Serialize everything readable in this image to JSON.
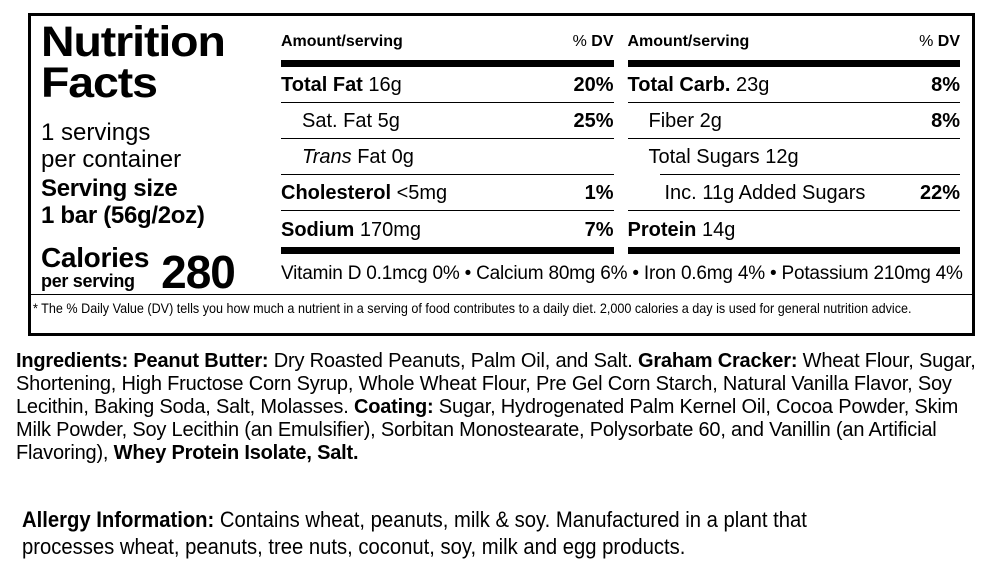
{
  "label": {
    "title_line1": "Nutrition",
    "title_line2": "Facts",
    "servings_line1": "1 servings",
    "servings_line2": "per container",
    "serving_size_label": "Serving size",
    "serving_size_value": "1 bar (56g/2oz)",
    "calories_label": "Calories",
    "calories_sub": "per serving",
    "calories_value": "280",
    "columns": [
      {
        "header_amount": "Amount/serving",
        "header_pct": "%",
        "header_dv": "DV",
        "rows": [
          {
            "name": "Total Fat",
            "amount": "16g",
            "dv": "20%"
          },
          {
            "name": "Sat. Fat",
            "amount": "5g",
            "dv": "25%"
          },
          {
            "name": "Trans",
            "amount": "Fat 0g",
            "dv": ""
          },
          {
            "name": "Cholesterol",
            "amount": "<5mg",
            "dv": "1%"
          },
          {
            "name": "Sodium",
            "amount": "170mg",
            "dv": "7%"
          }
        ]
      },
      {
        "header_amount": "Amount/serving",
        "header_pct": "%",
        "header_dv": "DV",
        "rows": [
          {
            "name": "Total Carb.",
            "amount": "23g",
            "dv": "8%"
          },
          {
            "name": "Fiber",
            "amount": "2g",
            "dv": "8%"
          },
          {
            "name": "Total Sugars",
            "amount": "12g",
            "dv": ""
          },
          {
            "name": "Inc.",
            "amount": "11g Added Sugars",
            "dv": "22%"
          },
          {
            "name": "Protein",
            "amount": "14g",
            "dv": ""
          }
        ]
      }
    ],
    "micronutrients": "Vitamin D 0.1mcg 0% • Calcium 80mg 6% • Iron 0.6mg 4% • Potassium 210mg 4%",
    "footnote": "* The % Daily Value (DV) tells you how much a nutrient in a serving of food contributes to a daily diet. 2,000 calories a day is used for general nutrition advice."
  },
  "ingredients": {
    "segments": [
      {
        "text": "Ingredients: Peanut Butter:",
        "bold": true
      },
      {
        "text": " Dry Roasted Peanuts, Palm Oil, and Salt. ",
        "bold": false
      },
      {
        "text": "Graham Cracker:",
        "bold": true
      },
      {
        "text": " Wheat Flour, Sugar, Shortening, High Fructose Corn Syrup, Whole Wheat Flour, Pre Gel Corn Starch, Natural Vanilla Flavor, Soy Lecithin, Baking Soda, Salt, Molasses. ",
        "bold": false
      },
      {
        "text": "Coating:",
        "bold": true
      },
      {
        "text": " Sugar, Hydrogenated Palm Kernel Oil, Cocoa Powder, Skim Milk Powder, Soy Lecithin (an Emulsifier), Sorbitan Monostearate, Polysorbate 60, and Vanillin (an Artificial Flavoring), ",
        "bold": false
      },
      {
        "text": "Whey Protein Isolate, Salt.",
        "bold": true
      }
    ]
  },
  "allergy": {
    "segments": [
      {
        "text": "Allergy Information:",
        "bold": true
      },
      {
        "text": " Contains wheat, peanuts, milk & soy. Manufactured in a plant that\nprocesses wheat, peanuts, tree nuts, coconut, soy, milk and egg products.",
        "bold": false
      }
    ]
  },
  "colors": {
    "text": "#000000",
    "background": "#ffffff",
    "rule": "#000000"
  }
}
